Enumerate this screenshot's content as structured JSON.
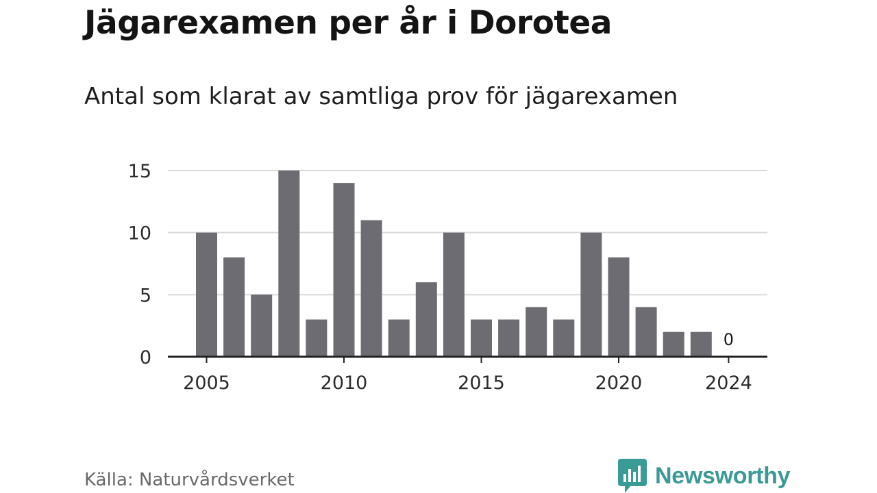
{
  "header": {
    "title": "Jägarexamen per år i Dorotea",
    "subtitle": "Antal som klarat av samtliga prov för jägarexamen"
  },
  "footer": {
    "source": "Källa: Naturvårdsverket",
    "brand": "Newsworthy",
    "brand_color": "#3a9a96",
    "brand_icon": "bar-chart-speech-bubble-icon"
  },
  "chart_data": {
    "type": "bar",
    "x": [
      2005,
      2006,
      2007,
      2008,
      2009,
      2010,
      2011,
      2012,
      2013,
      2014,
      2015,
      2016,
      2017,
      2018,
      2019,
      2020,
      2021,
      2022,
      2023,
      2024
    ],
    "values": [
      10,
      8,
      5,
      15,
      3,
      14,
      11,
      3,
      6,
      10,
      3,
      3,
      4,
      3,
      10,
      8,
      4,
      2,
      2,
      0
    ],
    "xticks": [
      "2005",
      "2010",
      "2015",
      "2020",
      "2024"
    ],
    "yticks": [
      "0",
      "5",
      "10",
      "15"
    ],
    "ylim": [
      0,
      15
    ],
    "grid": true,
    "bar_color": "#6d6c72",
    "annotations": [
      {
        "x": 2024,
        "text": "0"
      }
    ]
  }
}
